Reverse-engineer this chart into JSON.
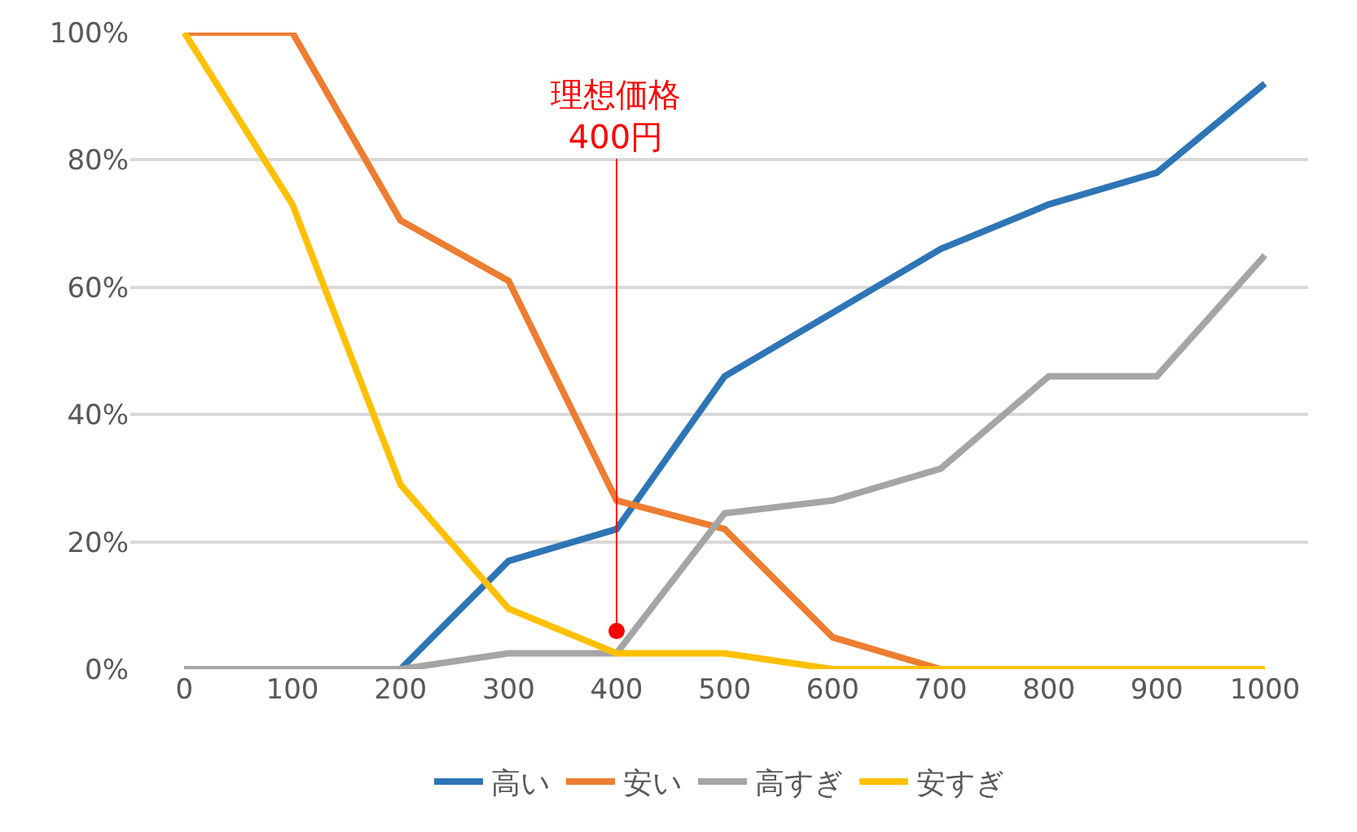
{
  "chart_data": {
    "type": "line",
    "categories": [
      "0",
      "100",
      "200",
      "300",
      "400",
      "500",
      "600",
      "700",
      "800",
      "900",
      "1000"
    ],
    "series": [
      {
        "name": "高い",
        "color": "#2e75b6",
        "values": [
          0,
          0,
          0,
          17,
          22,
          46,
          56,
          66,
          73,
          78,
          92
        ]
      },
      {
        "name": "安い",
        "color": "#ed7d31",
        "values": [
          100,
          100,
          70.5,
          61,
          26.5,
          22,
          5,
          0,
          null,
          null,
          null
        ]
      },
      {
        "name": "高すぎ",
        "color": "#a5a5a5",
        "values": [
          0,
          0,
          0,
          2.5,
          2.5,
          24.5,
          26.5,
          31.5,
          46,
          46,
          65
        ]
      },
      {
        "name": "安すぎ",
        "color": "#ffc000",
        "values": [
          100,
          73,
          29,
          9.5,
          2.5,
          2.5,
          0,
          0,
          0,
          0,
          0
        ]
      }
    ],
    "annotations": [
      {
        "text": "理想価格\n400円",
        "x": "400",
        "y": 6
      }
    ],
    "ylim": [
      0,
      100
    ],
    "yticks": [
      {
        "value": 0,
        "label": "0%"
      },
      {
        "value": 20,
        "label": "20%"
      },
      {
        "value": 40,
        "label": "40%"
      },
      {
        "value": 60,
        "label": "60%"
      },
      {
        "value": 80,
        "label": "80%"
      },
      {
        "value": 100,
        "label": "100%"
      }
    ],
    "grid": "y",
    "legend": "bottom",
    "marker": "none",
    "line_style": "solid"
  }
}
